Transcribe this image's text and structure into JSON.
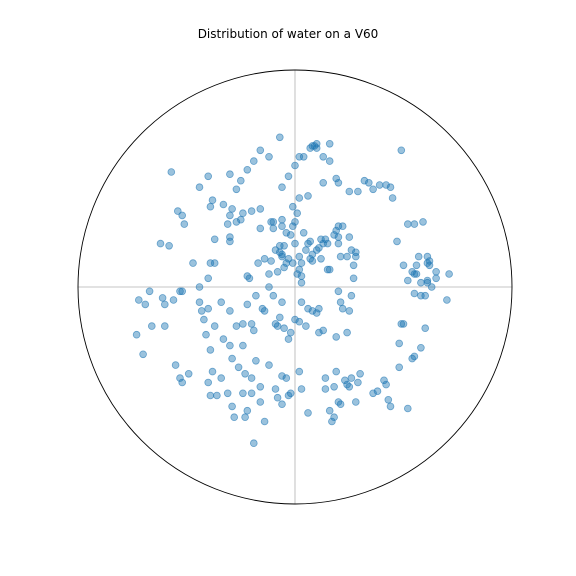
{
  "chart_data": {
    "type": "scatter",
    "title": "Distribution of water on a V60",
    "xlabel": "",
    "ylabel": "",
    "xlim": [
      -1,
      1
    ],
    "ylim": [
      -1,
      1
    ],
    "boundary": "circle",
    "crosshair": true,
    "series": [
      {
        "color": "#1f77b4",
        "alpha": 0.45,
        "points": [
          [
            -0.11,
            0.3
          ],
          [
            -0.06,
            0.46
          ],
          [
            -0.03,
            0.51
          ],
          [
            0.0,
            0.56
          ],
          [
            0.02,
            0.6
          ],
          [
            0.04,
            0.6
          ],
          [
            0.07,
            0.64
          ],
          [
            0.09,
            0.65
          ],
          [
            0.1,
            0.66
          ],
          [
            0.13,
            0.6
          ],
          [
            0.16,
            0.58
          ],
          [
            0.2,
            0.48
          ],
          [
            0.25,
            0.44
          ],
          [
            0.29,
            0.44
          ],
          [
            0.32,
            0.49
          ],
          [
            0.34,
            0.48
          ],
          [
            0.36,
            0.45
          ],
          [
            0.39,
            0.47
          ],
          [
            0.42,
            0.47
          ],
          [
            0.44,
            0.46
          ],
          [
            0.45,
            0.41
          ],
          [
            0.49,
            0.63
          ],
          [
            0.19,
            0.5
          ],
          [
            0.13,
            0.48
          ],
          [
            -0.57,
            0.53
          ],
          [
            -0.4,
            0.51
          ],
          [
            -0.3,
            0.52
          ],
          [
            -0.22,
            0.54
          ],
          [
            -0.16,
            0.63
          ],
          [
            -0.12,
            0.6
          ],
          [
            -0.07,
            0.69
          ],
          [
            -0.19,
            0.58
          ],
          [
            -0.44,
            0.46
          ],
          [
            -0.38,
            0.4
          ],
          [
            -0.33,
            0.38
          ],
          [
            -0.29,
            0.36
          ],
          [
            -0.24,
            0.34
          ],
          [
            -0.2,
            0.35
          ],
          [
            -0.16,
            0.36
          ],
          [
            -0.1,
            0.3
          ],
          [
            -0.06,
            0.28
          ],
          [
            -0.01,
            0.28
          ],
          [
            0.0,
            0.3
          ],
          [
            0.01,
            0.34
          ],
          [
            0.02,
            0.41
          ],
          [
            -0.54,
            0.35
          ],
          [
            -0.52,
            0.33
          ],
          [
            -0.51,
            0.29
          ],
          [
            -0.62,
            0.2
          ],
          [
            -0.58,
            0.19
          ],
          [
            -0.47,
            0.11
          ],
          [
            -0.39,
            0.11
          ],
          [
            -0.37,
            0.11
          ],
          [
            -0.3,
            0.23
          ],
          [
            -0.3,
            0.21
          ],
          [
            -0.25,
            0.31
          ],
          [
            -0.16,
            0.27
          ],
          [
            -0.1,
            0.27
          ],
          [
            -0.07,
            0.16
          ],
          [
            -0.06,
            0.14
          ],
          [
            -0.05,
            0.09
          ],
          [
            -0.04,
            0.11
          ],
          [
            -0.03,
            0.13
          ],
          [
            -0.01,
            0.11
          ],
          [
            0.02,
            0.14
          ],
          [
            0.03,
            0.11
          ],
          [
            0.05,
            0.17
          ],
          [
            0.06,
            0.2
          ],
          [
            0.07,
            0.21
          ],
          [
            0.08,
            0.15
          ],
          [
            0.1,
            0.17
          ],
          [
            0.11,
            0.18
          ],
          [
            0.13,
            0.2
          ],
          [
            0.15,
            0.2
          ],
          [
            0.18,
            0.24
          ],
          [
            0.19,
            0.26
          ],
          [
            0.2,
            0.2
          ],
          [
            0.21,
            0.14
          ],
          [
            0.24,
            0.14
          ],
          [
            0.26,
            0.17
          ],
          [
            0.27,
            0.04
          ],
          [
            0.01,
            0.06
          ],
          [
            0.03,
            0.02
          ],
          [
            -0.12,
            0.06
          ],
          [
            -0.14,
            0.13
          ],
          [
            -0.17,
            0.11
          ],
          [
            -0.21,
            0.04
          ],
          [
            -0.22,
            0.05
          ],
          [
            -0.12,
            0.0
          ],
          [
            -0.1,
            -0.04
          ],
          [
            -0.06,
            -0.07
          ],
          [
            -0.08,
            0.07
          ],
          [
            -0.15,
            -0.1
          ],
          [
            -0.18,
            -0.04
          ],
          [
            -0.4,
            0.04
          ],
          [
            -0.44,
            0.0
          ],
          [
            -0.53,
            -0.02
          ],
          [
            -0.61,
            -0.05
          ],
          [
            -0.56,
            -0.06
          ],
          [
            -0.6,
            -0.08
          ],
          [
            -0.52,
            -0.02
          ],
          [
            -0.67,
            -0.02
          ],
          [
            -0.72,
            -0.06
          ],
          [
            -0.69,
            -0.08
          ],
          [
            -0.66,
            -0.18
          ],
          [
            -0.6,
            -0.18
          ],
          [
            -0.73,
            -0.22
          ],
          [
            -0.7,
            -0.31
          ],
          [
            -0.55,
            -0.36
          ],
          [
            -0.53,
            -0.42
          ],
          [
            -0.52,
            -0.44
          ],
          [
            -0.49,
            -0.4
          ],
          [
            -0.42,
            -0.15
          ],
          [
            -0.44,
            -0.07
          ],
          [
            -0.4,
            -0.1
          ],
          [
            -0.43,
            -0.11
          ],
          [
            -0.34,
            -0.07
          ],
          [
            -0.3,
            -0.11
          ],
          [
            -0.22,
            -0.08
          ],
          [
            -0.24,
            -0.17
          ],
          [
            -0.41,
            -0.22
          ],
          [
            -0.39,
            -0.29
          ],
          [
            -0.37,
            -0.18
          ],
          [
            -0.33,
            -0.24
          ],
          [
            -0.3,
            -0.27
          ],
          [
            -0.24,
            -0.27
          ],
          [
            -0.26,
            -0.37
          ],
          [
            -0.23,
            -0.4
          ],
          [
            -0.18,
            -0.34
          ],
          [
            -0.2,
            -0.42
          ],
          [
            -0.16,
            -0.46
          ],
          [
            -0.2,
            -0.49
          ],
          [
            -0.38,
            -0.39
          ],
          [
            -0.34,
            -0.42
          ],
          [
            -0.31,
            -0.49
          ],
          [
            -0.29,
            -0.55
          ],
          [
            -0.4,
            -0.44
          ],
          [
            -0.39,
            -0.5
          ],
          [
            -0.36,
            -0.5
          ],
          [
            -0.23,
            -0.6
          ],
          [
            -0.16,
            -0.53
          ],
          [
            -0.09,
            -0.47
          ],
          [
            -0.08,
            -0.51
          ],
          [
            -0.06,
            -0.41
          ],
          [
            -0.08,
            -0.18
          ],
          [
            -0.09,
            -0.17
          ],
          [
            -0.12,
            -0.36
          ],
          [
            -0.04,
            -0.42
          ],
          [
            -0.05,
            -0.19
          ],
          [
            -0.03,
            -0.24
          ],
          [
            -0.02,
            -0.21
          ],
          [
            0.0,
            -0.15
          ],
          [
            0.02,
            -0.16
          ],
          [
            0.03,
            -0.07
          ],
          [
            0.05,
            -0.18
          ],
          [
            0.08,
            -0.11
          ],
          [
            0.1,
            -0.12
          ],
          [
            0.11,
            -0.1
          ],
          [
            0.11,
            -0.21
          ],
          [
            0.02,
            -0.39
          ],
          [
            0.03,
            -0.47
          ],
          [
            -0.02,
            -0.49
          ],
          [
            -0.03,
            -0.5
          ],
          [
            -0.06,
            -0.54
          ],
          [
            -0.19,
            -0.72
          ],
          [
            -0.14,
            -0.62
          ],
          [
            -0.22,
            -0.57
          ],
          [
            -0.28,
            -0.6
          ],
          [
            0.06,
            -0.58
          ],
          [
            0.14,
            -0.42
          ],
          [
            0.14,
            -0.47
          ],
          [
            0.16,
            -0.57
          ],
          [
            0.17,
            -0.62
          ],
          [
            0.18,
            -0.6
          ],
          [
            0.2,
            -0.53
          ],
          [
            0.21,
            -0.54
          ],
          [
            0.23,
            -0.43
          ],
          [
            0.24,
            -0.45
          ],
          [
            0.25,
            -0.46
          ],
          [
            0.26,
            -0.42
          ],
          [
            0.28,
            -0.53
          ],
          [
            0.29,
            -0.44
          ],
          [
            0.3,
            -0.4
          ],
          [
            0.19,
            -0.23
          ],
          [
            0.2,
            -0.02
          ],
          [
            0.21,
            -0.07
          ],
          [
            0.22,
            -0.1
          ],
          [
            0.25,
            -0.11
          ],
          [
            0.26,
            -0.04
          ],
          [
            0.41,
            -0.43
          ],
          [
            0.42,
            -0.45
          ],
          [
            0.44,
            -0.55
          ],
          [
            0.48,
            -0.37
          ],
          [
            0.52,
            -0.56
          ],
          [
            0.48,
            -0.26
          ],
          [
            0.49,
            -0.17
          ],
          [
            0.5,
            -0.17
          ],
          [
            0.54,
            -0.33
          ],
          [
            0.55,
            -0.32
          ],
          [
            0.58,
            -0.28
          ],
          [
            0.6,
            -0.19
          ],
          [
            0.52,
            0.03
          ],
          [
            0.54,
            0.07
          ],
          [
            0.56,
            0.1
          ],
          [
            0.56,
            0.06
          ],
          [
            0.58,
            -0.04
          ],
          [
            0.61,
            0.14
          ],
          [
            0.61,
            0.03
          ],
          [
            0.61,
            0.02
          ],
          [
            0.63,
            0.0
          ],
          [
            0.62,
            0.1
          ],
          [
            0.62,
            0.12
          ],
          [
            0.57,
            0.14
          ],
          [
            0.55,
            0.06
          ],
          [
            0.55,
            -0.03
          ],
          [
            0.5,
            0.1
          ],
          [
            0.47,
            0.21
          ],
          [
            0.52,
            0.29
          ],
          [
            0.55,
            0.29
          ],
          [
            0.65,
            0.07
          ],
          [
            0.59,
            0.3
          ],
          [
            0.65,
            0.04
          ],
          [
            0.58,
            0.02
          ],
          [
            0.6,
            -0.04
          ],
          [
            0.7,
            -0.06
          ],
          [
            0.71,
            0.06
          ],
          [
            0.61,
            0.11
          ],
          [
            0.15,
            0.08
          ],
          [
            0.28,
            0.14
          ],
          [
            0.28,
            0.16
          ],
          [
            0.12,
            0.22
          ],
          [
            0.14,
            0.22
          ],
          [
            0.2,
            0.23
          ],
          [
            0.04,
            0.25
          ],
          [
            -0.01,
            0.37
          ],
          [
            -0.04,
            0.25
          ],
          [
            0.0,
            0.2
          ],
          [
            -0.11,
            0.12
          ],
          [
            -0.09,
            0.17
          ],
          [
            -0.06,
            0.15
          ],
          [
            -0.07,
            0.19
          ],
          [
            -0.05,
            0.19
          ],
          [
            -0.14,
            -0.11
          ],
          [
            -0.2,
            -0.17
          ],
          [
            -0.29,
            -0.33
          ],
          [
            -0.24,
            -0.49
          ],
          [
            -0.27,
            -0.18
          ],
          [
            -0.19,
            -0.2
          ],
          [
            -0.07,
            -0.14
          ],
          [
            0.06,
            -0.1
          ],
          [
            0.13,
            -0.2
          ],
          [
            0.24,
            -0.21
          ],
          [
            0.18,
            -0.46
          ],
          [
            0.36,
            -0.49
          ],
          [
            0.38,
            -0.48
          ],
          [
            0.43,
            -0.52
          ],
          [
            0.19,
            -0.39
          ],
          [
            -0.3,
            0.33
          ],
          [
            -0.37,
            0.22
          ],
          [
            -0.31,
            0.29
          ],
          [
            -0.27,
            0.3
          ],
          [
            -0.39,
            0.37
          ],
          [
            -0.27,
            0.45
          ],
          [
            -0.25,
            0.49
          ],
          [
            -0.06,
            0.31
          ],
          [
            -0.02,
            0.24
          ],
          [
            0.06,
            0.42
          ],
          [
            0.2,
            0.28
          ],
          [
            0.22,
            0.28
          ],
          [
            0.12,
            0.13
          ],
          [
            0.08,
            0.12
          ],
          [
            0.07,
            0.13
          ],
          [
            0.02,
            0.08
          ],
          [
            0.03,
            0.05
          ],
          [
            0.16,
            0.08
          ],
          [
            0.27,
            0.1
          ],
          [
            0.25,
            0.23
          ],
          [
            0.08,
            0.65
          ],
          [
            0.1,
            0.64
          ],
          [
            0.16,
            0.66
          ]
        ]
      }
    ]
  }
}
